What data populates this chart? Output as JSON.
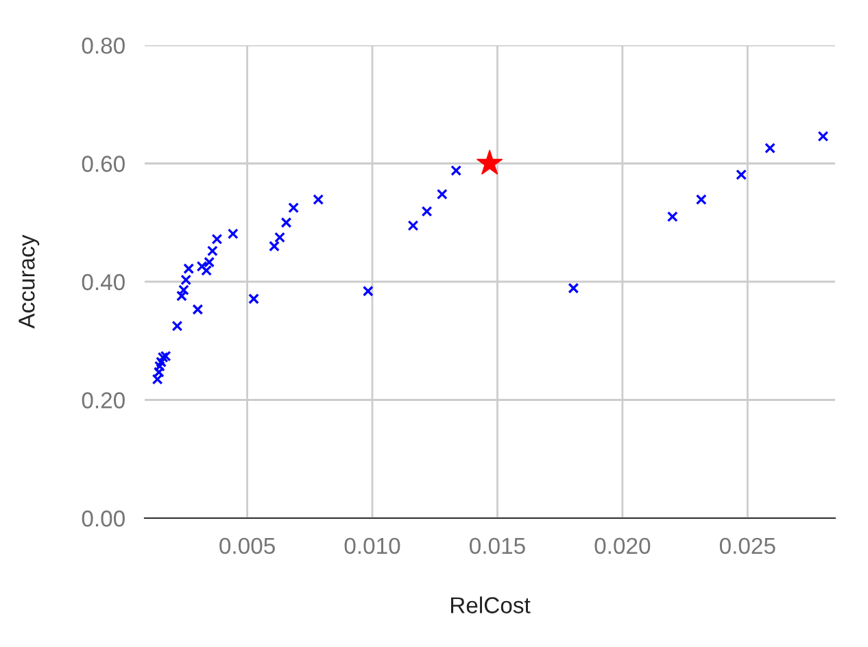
{
  "chart_data": {
    "type": "scatter",
    "xlabel": "RelCost",
    "ylabel": "Accuracy",
    "xlim": [
      0.0009,
      0.0285
    ],
    "ylim": [
      0,
      0.8
    ],
    "xticks": [
      0.005,
      {
        "value": 0.01,
        "label": "0.010"
      },
      0.015,
      {
        "value": 0.02,
        "label": "0.020"
      },
      0.025
    ],
    "yticks": [
      {
        "value": 0,
        "label": "0.00"
      },
      {
        "value": 0.2,
        "label": "0.20"
      },
      {
        "value": 0.4,
        "label": "0.40"
      },
      {
        "value": 0.6,
        "label": "0.60"
      },
      {
        "value": 0.8,
        "label": "0.80"
      }
    ],
    "grid": true,
    "legend": false,
    "series": [
      {
        "color": "#0000ff",
        "marker": "cross",
        "x": [
          0.00141,
          0.00147,
          0.0015,
          0.00156,
          0.00163,
          0.00174,
          0.0022,
          0.00238,
          0.00246,
          0.00255,
          0.00266,
          0.00302,
          0.00319,
          0.00337,
          0.00348,
          0.00361,
          0.00379,
          0.00443,
          0.00526,
          0.00608,
          0.0063,
          0.00656,
          0.00685,
          0.00784,
          0.00983,
          0.01163,
          0.01218,
          0.01279,
          0.01335,
          0.01804,
          0.022,
          0.02315,
          0.02475,
          0.0259,
          0.02802
        ],
        "values": [
          0.235,
          0.247,
          0.257,
          0.264,
          0.272,
          0.274,
          0.325,
          0.376,
          0.386,
          0.403,
          0.422,
          0.353,
          0.426,
          0.419,
          0.433,
          0.452,
          0.472,
          0.481,
          0.371,
          0.46,
          0.475,
          0.5,
          0.525,
          0.539,
          0.384,
          0.495,
          0.519,
          0.548,
          0.588,
          0.389,
          0.51,
          0.539,
          0.581,
          0.626,
          0.646
        ]
      },
      {
        "color": "#ff0000",
        "marker": "star",
        "x": [
          0.01469
        ],
        "values": [
          0.6
        ]
      }
    ]
  }
}
